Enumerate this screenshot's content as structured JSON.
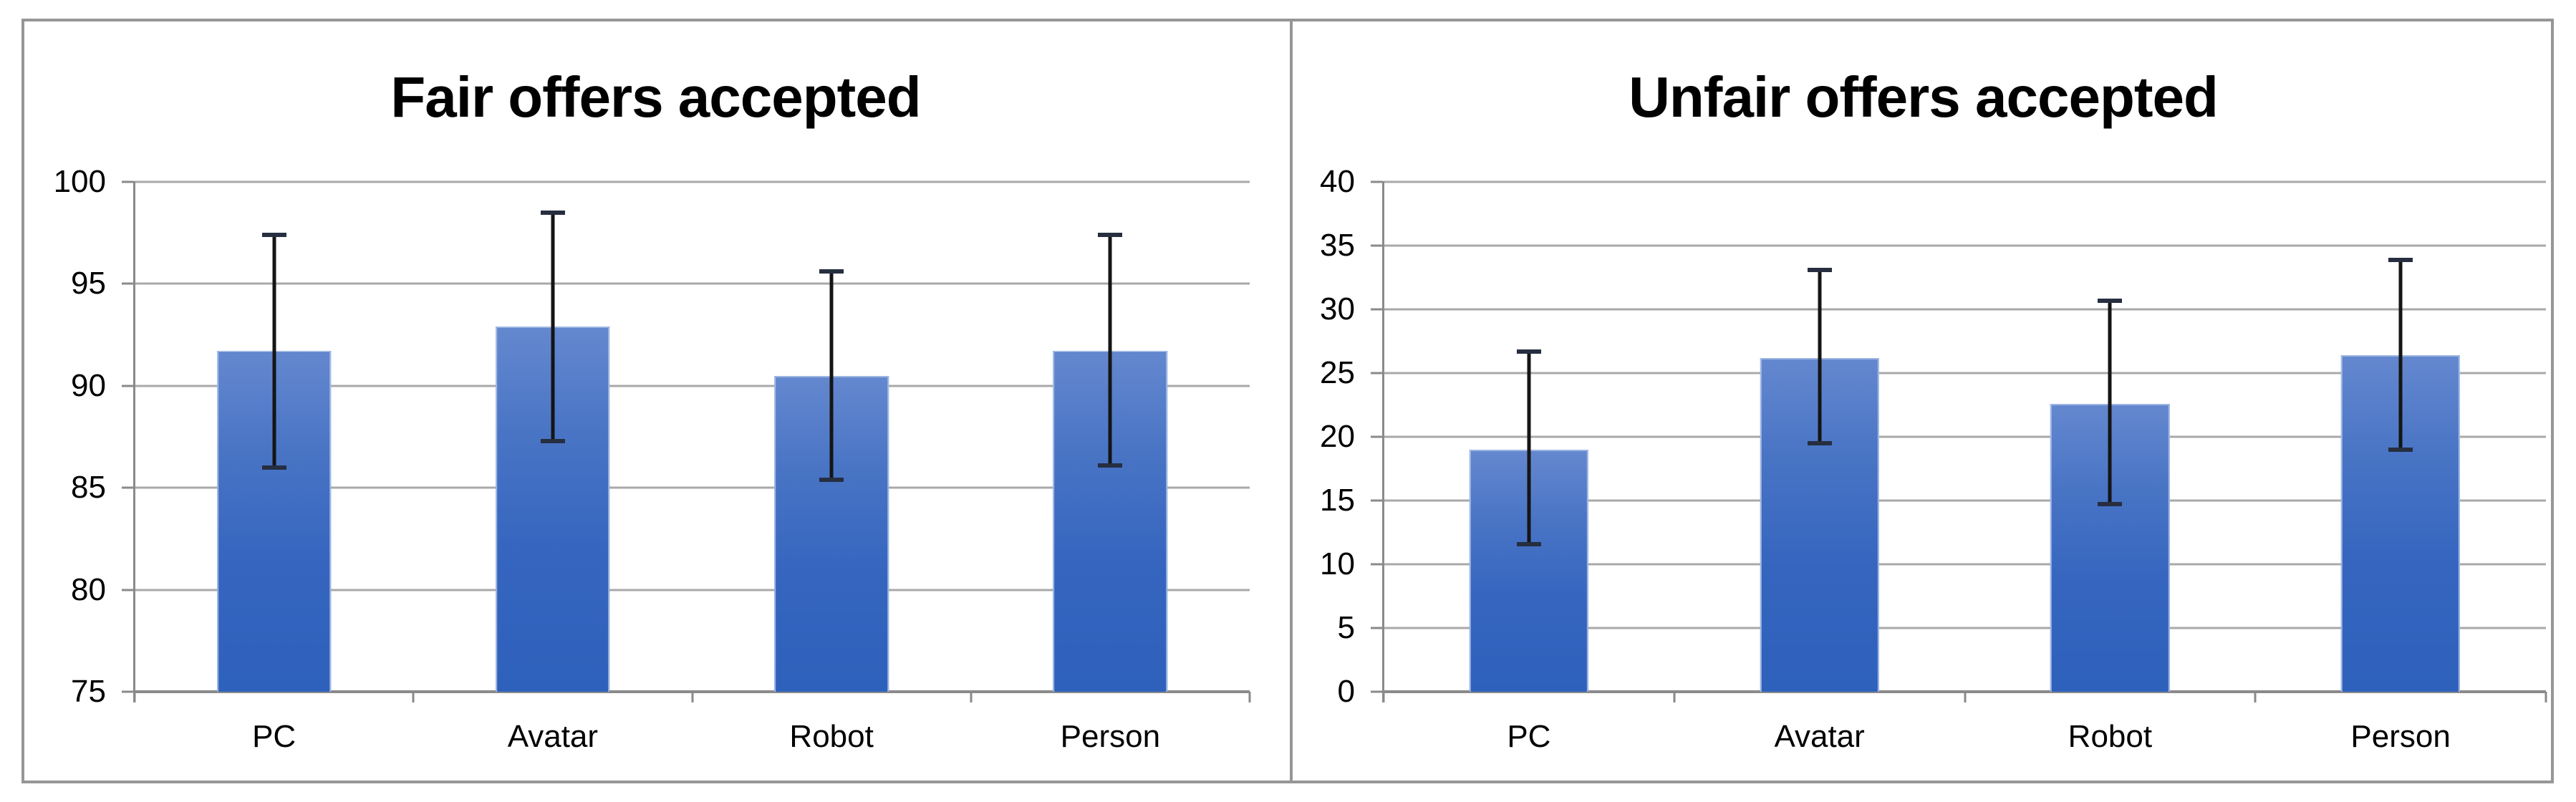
{
  "figure": {
    "colors": {
      "bar_gradient_top": "#6488cf",
      "bar_gradient_bottom": "#2e61bc",
      "bar_edge": "#b0c4e9",
      "gridline": "#a9a9a9",
      "axis": "#8a8a8a",
      "frame_border": "#969696",
      "error_bar": "#151515",
      "error_cap": "#262e40",
      "text": "#000000",
      "background": "#ffffff"
    }
  },
  "chart_data": [
    {
      "type": "bar",
      "title": "Fair offers accepted",
      "categories": [
        "PC",
        "Avatar",
        "Robot",
        "Person"
      ],
      "values": [
        91.7,
        92.9,
        90.5,
        91.7
      ],
      "error_low": [
        86.0,
        87.3,
        85.4,
        86.1
      ],
      "error_high": [
        97.4,
        98.5,
        95.6,
        97.4
      ],
      "ylim": [
        75,
        100
      ],
      "yticks": [
        75,
        80,
        85,
        90,
        95,
        100
      ],
      "xlabel": "",
      "ylabel": "",
      "grid": true,
      "legend_position": "none"
    },
    {
      "type": "bar",
      "title": "Unfair offers accepted",
      "categories": [
        "PC",
        "Avatar",
        "Robot",
        "Person"
      ],
      "values": [
        19.0,
        26.2,
        22.6,
        26.4
      ],
      "error_low": [
        11.6,
        19.5,
        14.7,
        19.0
      ],
      "error_high": [
        26.7,
        33.1,
        30.7,
        33.9
      ],
      "ylim": [
        0,
        40
      ],
      "yticks": [
        0,
        5,
        10,
        15,
        20,
        25,
        30,
        35,
        40
      ],
      "xlabel": "",
      "ylabel": "",
      "grid": true,
      "legend_position": "none"
    }
  ]
}
